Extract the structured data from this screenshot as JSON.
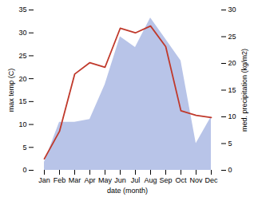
{
  "chart_data": {
    "type": "line",
    "xlabel": "date (month)",
    "ylabel": "max temp (C)",
    "y2label": "med. precipitation (kg/m2)",
    "categories": [
      "Jan",
      "Feb",
      "Mar",
      "Apr",
      "May",
      "Jun",
      "Jul",
      "Aug",
      "Sep",
      "Oct",
      "Nov",
      "Dec"
    ],
    "series": [
      {
        "type": "area",
        "axis": "y2",
        "color": "#b8c4e8",
        "values": [
          1.5,
          9.0,
          9.0,
          9.5,
          16.0,
          25.0,
          23.0,
          28.5,
          24.5,
          20.5,
          5.0,
          10.0
        ]
      },
      {
        "type": "line",
        "color": "#c0392b",
        "values": [
          2.5,
          8.5,
          21.0,
          23.5,
          22.5,
          31.0,
          30.0,
          31.5,
          27.0,
          13.0,
          12.0,
          11.5
        ]
      }
    ],
    "ylim": [
      0,
      35
    ],
    "yticks": [
      0,
      5,
      10,
      15,
      20,
      25,
      30,
      35
    ],
    "y2lim": [
      0,
      30
    ],
    "y2ticks": [
      0,
      5,
      10,
      15,
      20,
      25,
      30
    ],
    "grid": false
  }
}
